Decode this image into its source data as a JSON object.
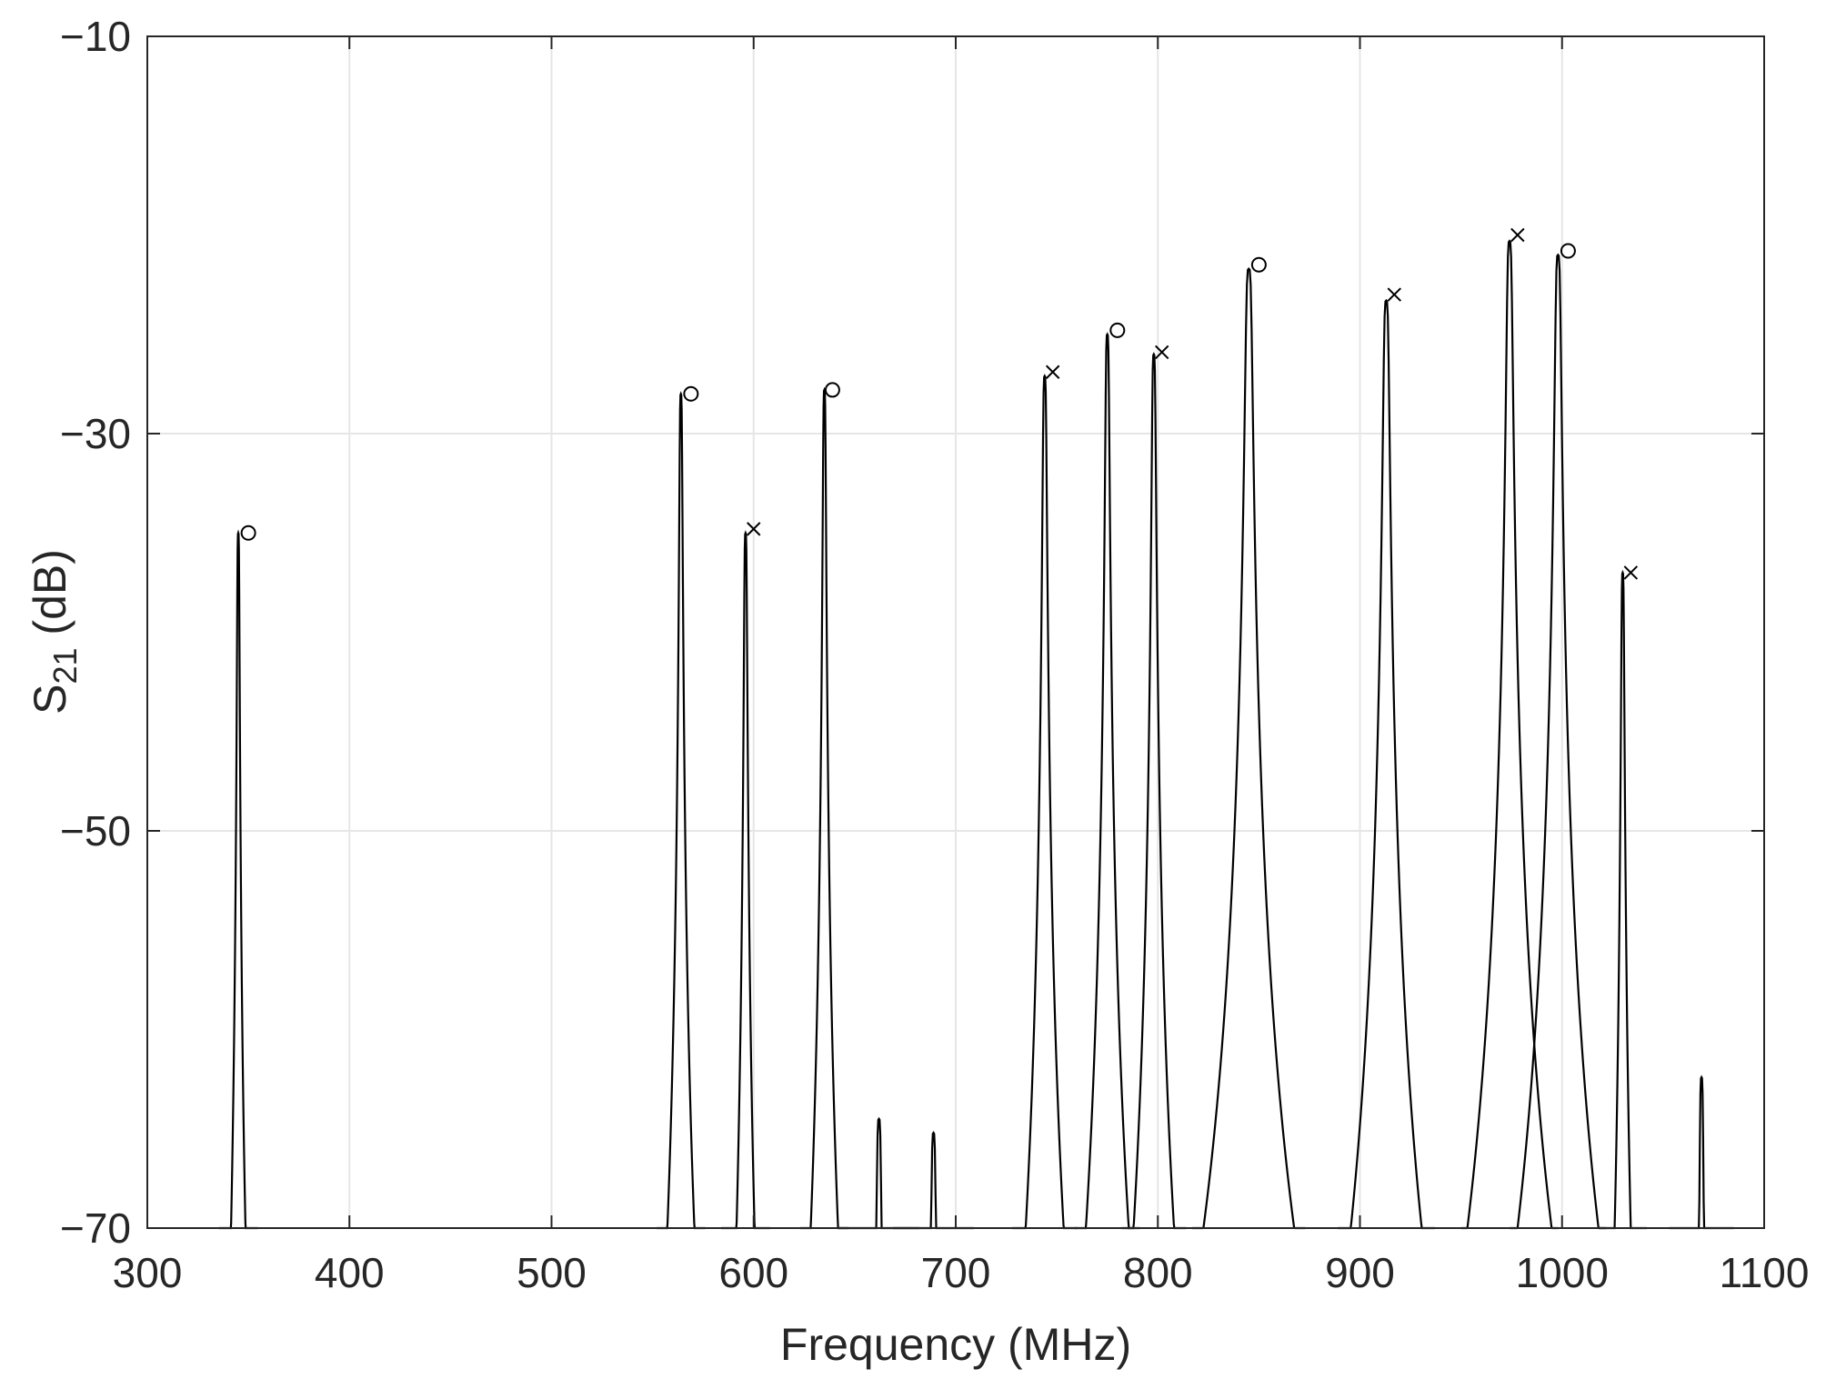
{
  "chart_data": {
    "type": "line",
    "title": "",
    "xlabel": "Frequency (MHz)",
    "ylabel": {
      "main": "S",
      "subscript": "21",
      "unit": " (dB)"
    },
    "xlim": [
      300,
      1100
    ],
    "ylim": [
      -70,
      -10
    ],
    "xticks": [
      300,
      400,
      500,
      600,
      700,
      800,
      900,
      1000,
      1100
    ],
    "xtick_labels": [
      "300",
      "400",
      "500",
      "600",
      "700",
      "800",
      "900",
      "1000",
      "1100"
    ],
    "yticks": [
      -70,
      -50,
      -30,
      -10
    ],
    "ytick_labels": [
      "−70",
      "−50",
      "−30",
      "−10"
    ],
    "grid": true,
    "line_color": "#000000",
    "grid_color": "#e6e6e6",
    "peaks": [
      {
        "x": 345,
        "y": -35.0,
        "width": 1.2
      },
      {
        "x": 564,
        "y": -28.0,
        "width": 1.5
      },
      {
        "x": 596,
        "y": -35.0,
        "width": 1.5
      },
      {
        "x": 635,
        "y": -27.8,
        "width": 1.5
      },
      {
        "x": 662,
        "y": -64.5,
        "width": 2.5
      },
      {
        "x": 689,
        "y": -65.2,
        "width": 2.5
      },
      {
        "x": 744,
        "y": -27.1,
        "width": 2.0
      },
      {
        "x": 775,
        "y": -25.0,
        "width": 2.0
      },
      {
        "x": 798,
        "y": -26.0,
        "width": 2.0
      },
      {
        "x": 845,
        "y": -21.7,
        "width": 3.5
      },
      {
        "x": 913,
        "y": -23.3,
        "width": 3.0
      },
      {
        "x": 974,
        "y": -20.3,
        "width": 3.0
      },
      {
        "x": 998,
        "y": -21.0,
        "width": 3.0
      },
      {
        "x": 1030,
        "y": -37.0,
        "width": 1.5
      },
      {
        "x": 1069,
        "y": -62.4,
        "width": 2.0
      }
    ],
    "markers": [
      {
        "x": 350,
        "y": -35.0,
        "symbol": "o"
      },
      {
        "x": 569,
        "y": -28.0,
        "symbol": "o"
      },
      {
        "x": 600,
        "y": -34.8,
        "symbol": "x"
      },
      {
        "x": 639,
        "y": -27.8,
        "symbol": "o"
      },
      {
        "x": 748,
        "y": -26.9,
        "symbol": "x"
      },
      {
        "x": 780,
        "y": -24.8,
        "symbol": "o"
      },
      {
        "x": 802,
        "y": -25.9,
        "symbol": "x"
      },
      {
        "x": 850,
        "y": -21.5,
        "symbol": "o"
      },
      {
        "x": 917,
        "y": -23.0,
        "symbol": "x"
      },
      {
        "x": 978,
        "y": -20.0,
        "symbol": "x"
      },
      {
        "x": 1003,
        "y": -20.8,
        "symbol": "o"
      },
      {
        "x": 1034,
        "y": -37.0,
        "symbol": "x"
      }
    ]
  }
}
